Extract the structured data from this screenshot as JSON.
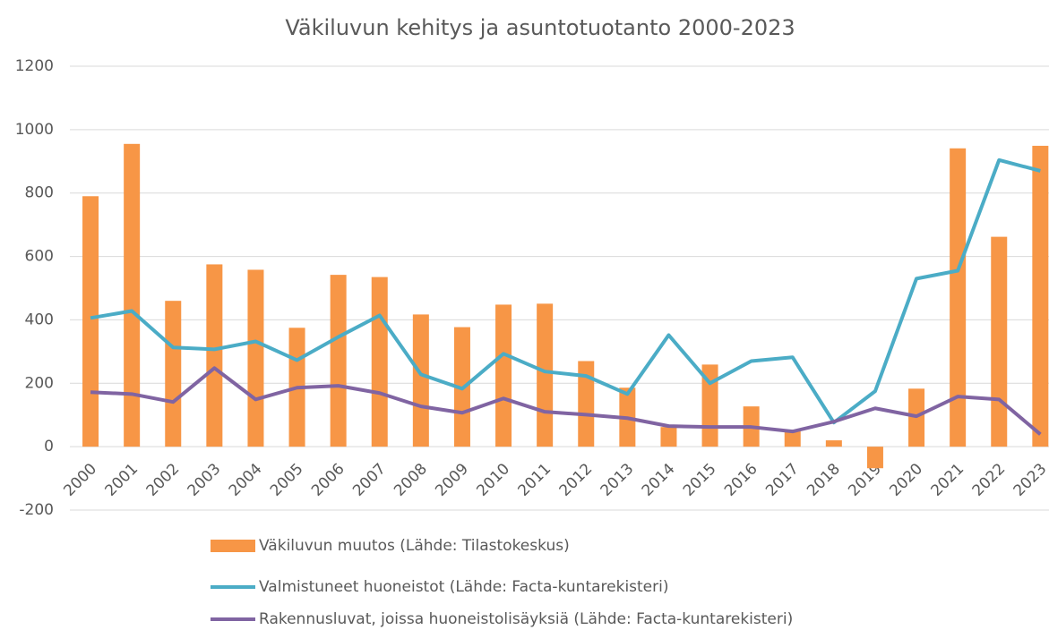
{
  "chart_data": {
    "type": "bar-line",
    "title": "Väkiluvun kehitys ja asuntotuotanto 2000-2023",
    "categories": [
      "2000",
      "2001",
      "2002",
      "2003",
      "2004",
      "2005",
      "2006",
      "2007",
      "2008",
      "2009",
      "2010",
      "2011",
      "2012",
      "2013",
      "2014",
      "2015",
      "2016",
      "2017",
      "2018",
      "2019",
      "2020",
      "2021",
      "2022",
      "2023"
    ],
    "series": [
      {
        "name": "Väkiluvun muutos (Lähde: Tilastokeskus)",
        "type": "bar",
        "color": "#f79646",
        "values": [
          790,
          955,
          460,
          575,
          558,
          375,
          542,
          535,
          417,
          377,
          448,
          451,
          270,
          186,
          62,
          259,
          127,
          54,
          20,
          -68,
          183,
          941,
          662,
          949
        ]
      },
      {
        "name": "Valmistuneet huoneistot (Lähde: Facta-kuntarekisteri)",
        "type": "line",
        "color": "#4bacc6",
        "values": [
          406,
          428,
          313,
          307,
          332,
          273,
          346,
          414,
          228,
          183,
          293,
          237,
          223,
          166,
          352,
          200,
          270,
          282,
          76,
          175,
          530,
          555,
          904,
          870
        ]
      },
      {
        "name": "Rakennusluvat, joissa huoneistolisäyksiä (Lähde: Facta-kuntarekisteri)",
        "type": "line",
        "color": "#8064a2",
        "values": [
          172,
          166,
          141,
          248,
          149,
          186,
          192,
          169,
          127,
          107,
          152,
          110,
          101,
          90,
          65,
          62,
          62,
          48,
          79,
          121,
          96,
          158,
          149,
          39
        ]
      }
    ],
    "ylim": [
      -200,
      1200
    ],
    "yticks": [
      -200,
      0,
      200,
      400,
      600,
      800,
      1000,
      1200
    ],
    "grid": true
  }
}
